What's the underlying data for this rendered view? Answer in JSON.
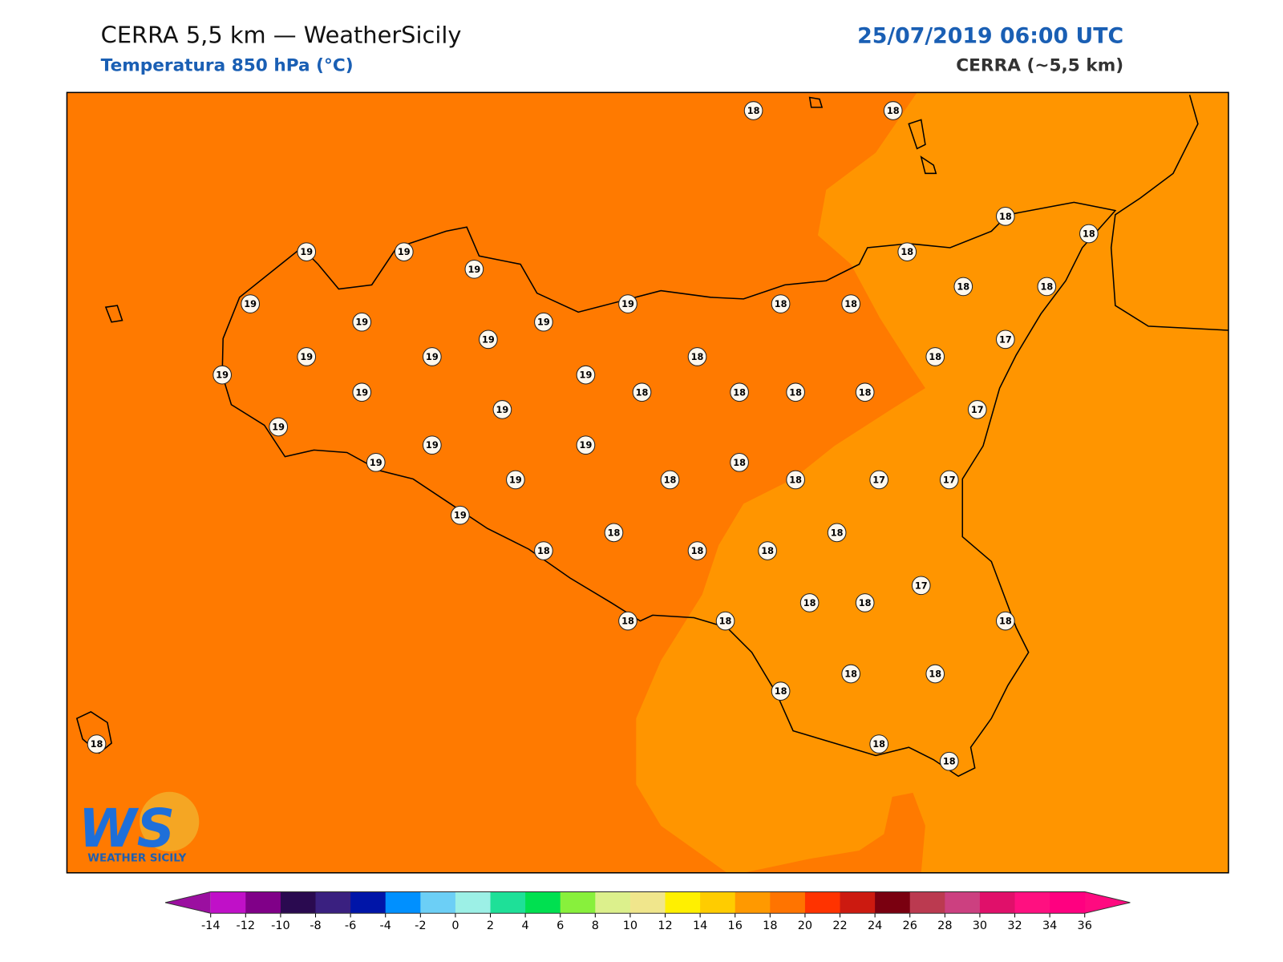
{
  "header": {
    "title": "CERRA 5,5 km — WeatherSicily",
    "subtitle": "Temperatura 850 hPa (°C)",
    "datetime": "25/07/2019 06:00 UTC",
    "model": "CERRA (~5,5 km)"
  },
  "logo": {
    "mark": "WS",
    "text": "WEATHER SICILY"
  },
  "points": [
    18,
    18,
    19,
    19,
    19,
    18,
    18,
    18,
    19,
    19,
    19,
    19,
    18,
    18,
    18,
    18,
    19,
    19,
    19,
    18,
    17,
    18,
    19,
    19,
    19,
    18,
    18,
    18,
    18,
    17,
    19,
    19,
    19,
    19,
    19,
    18,
    19,
    18,
    18,
    17,
    17,
    19,
    18,
    18,
    18,
    18,
    18,
    17,
    18,
    18,
    18,
    18,
    18,
    18,
    18,
    18,
    18,
    18,
    18
  ],
  "colorbar": {
    "ticks": [
      -14,
      -12,
      -10,
      -8,
      -6,
      -4,
      -2,
      0,
      2,
      4,
      6,
      8,
      10,
      12,
      14,
      16,
      18,
      20,
      22,
      24,
      26,
      28,
      30,
      32,
      34,
      36
    ],
    "under": "#9b0fa0",
    "over": "#ff0a80",
    "colors": [
      "#c010c8",
      "#800088",
      "#2a0a50",
      "#3a2080",
      "#0015a8",
      "#0090ff",
      "#6ccff6",
      "#9cf0e6",
      "#1ee098",
      "#00e050",
      "#88f03c",
      "#dcf08c",
      "#f0e68c",
      "#fff000",
      "#ffcc00",
      "#ff9900",
      "#ff7400",
      "#ff3300",
      "#cc1a10",
      "#7a0010",
      "#bb3a50",
      "#cc4080",
      "#e0106a",
      "#ff1080",
      "#ff0080"
    ]
  }
}
